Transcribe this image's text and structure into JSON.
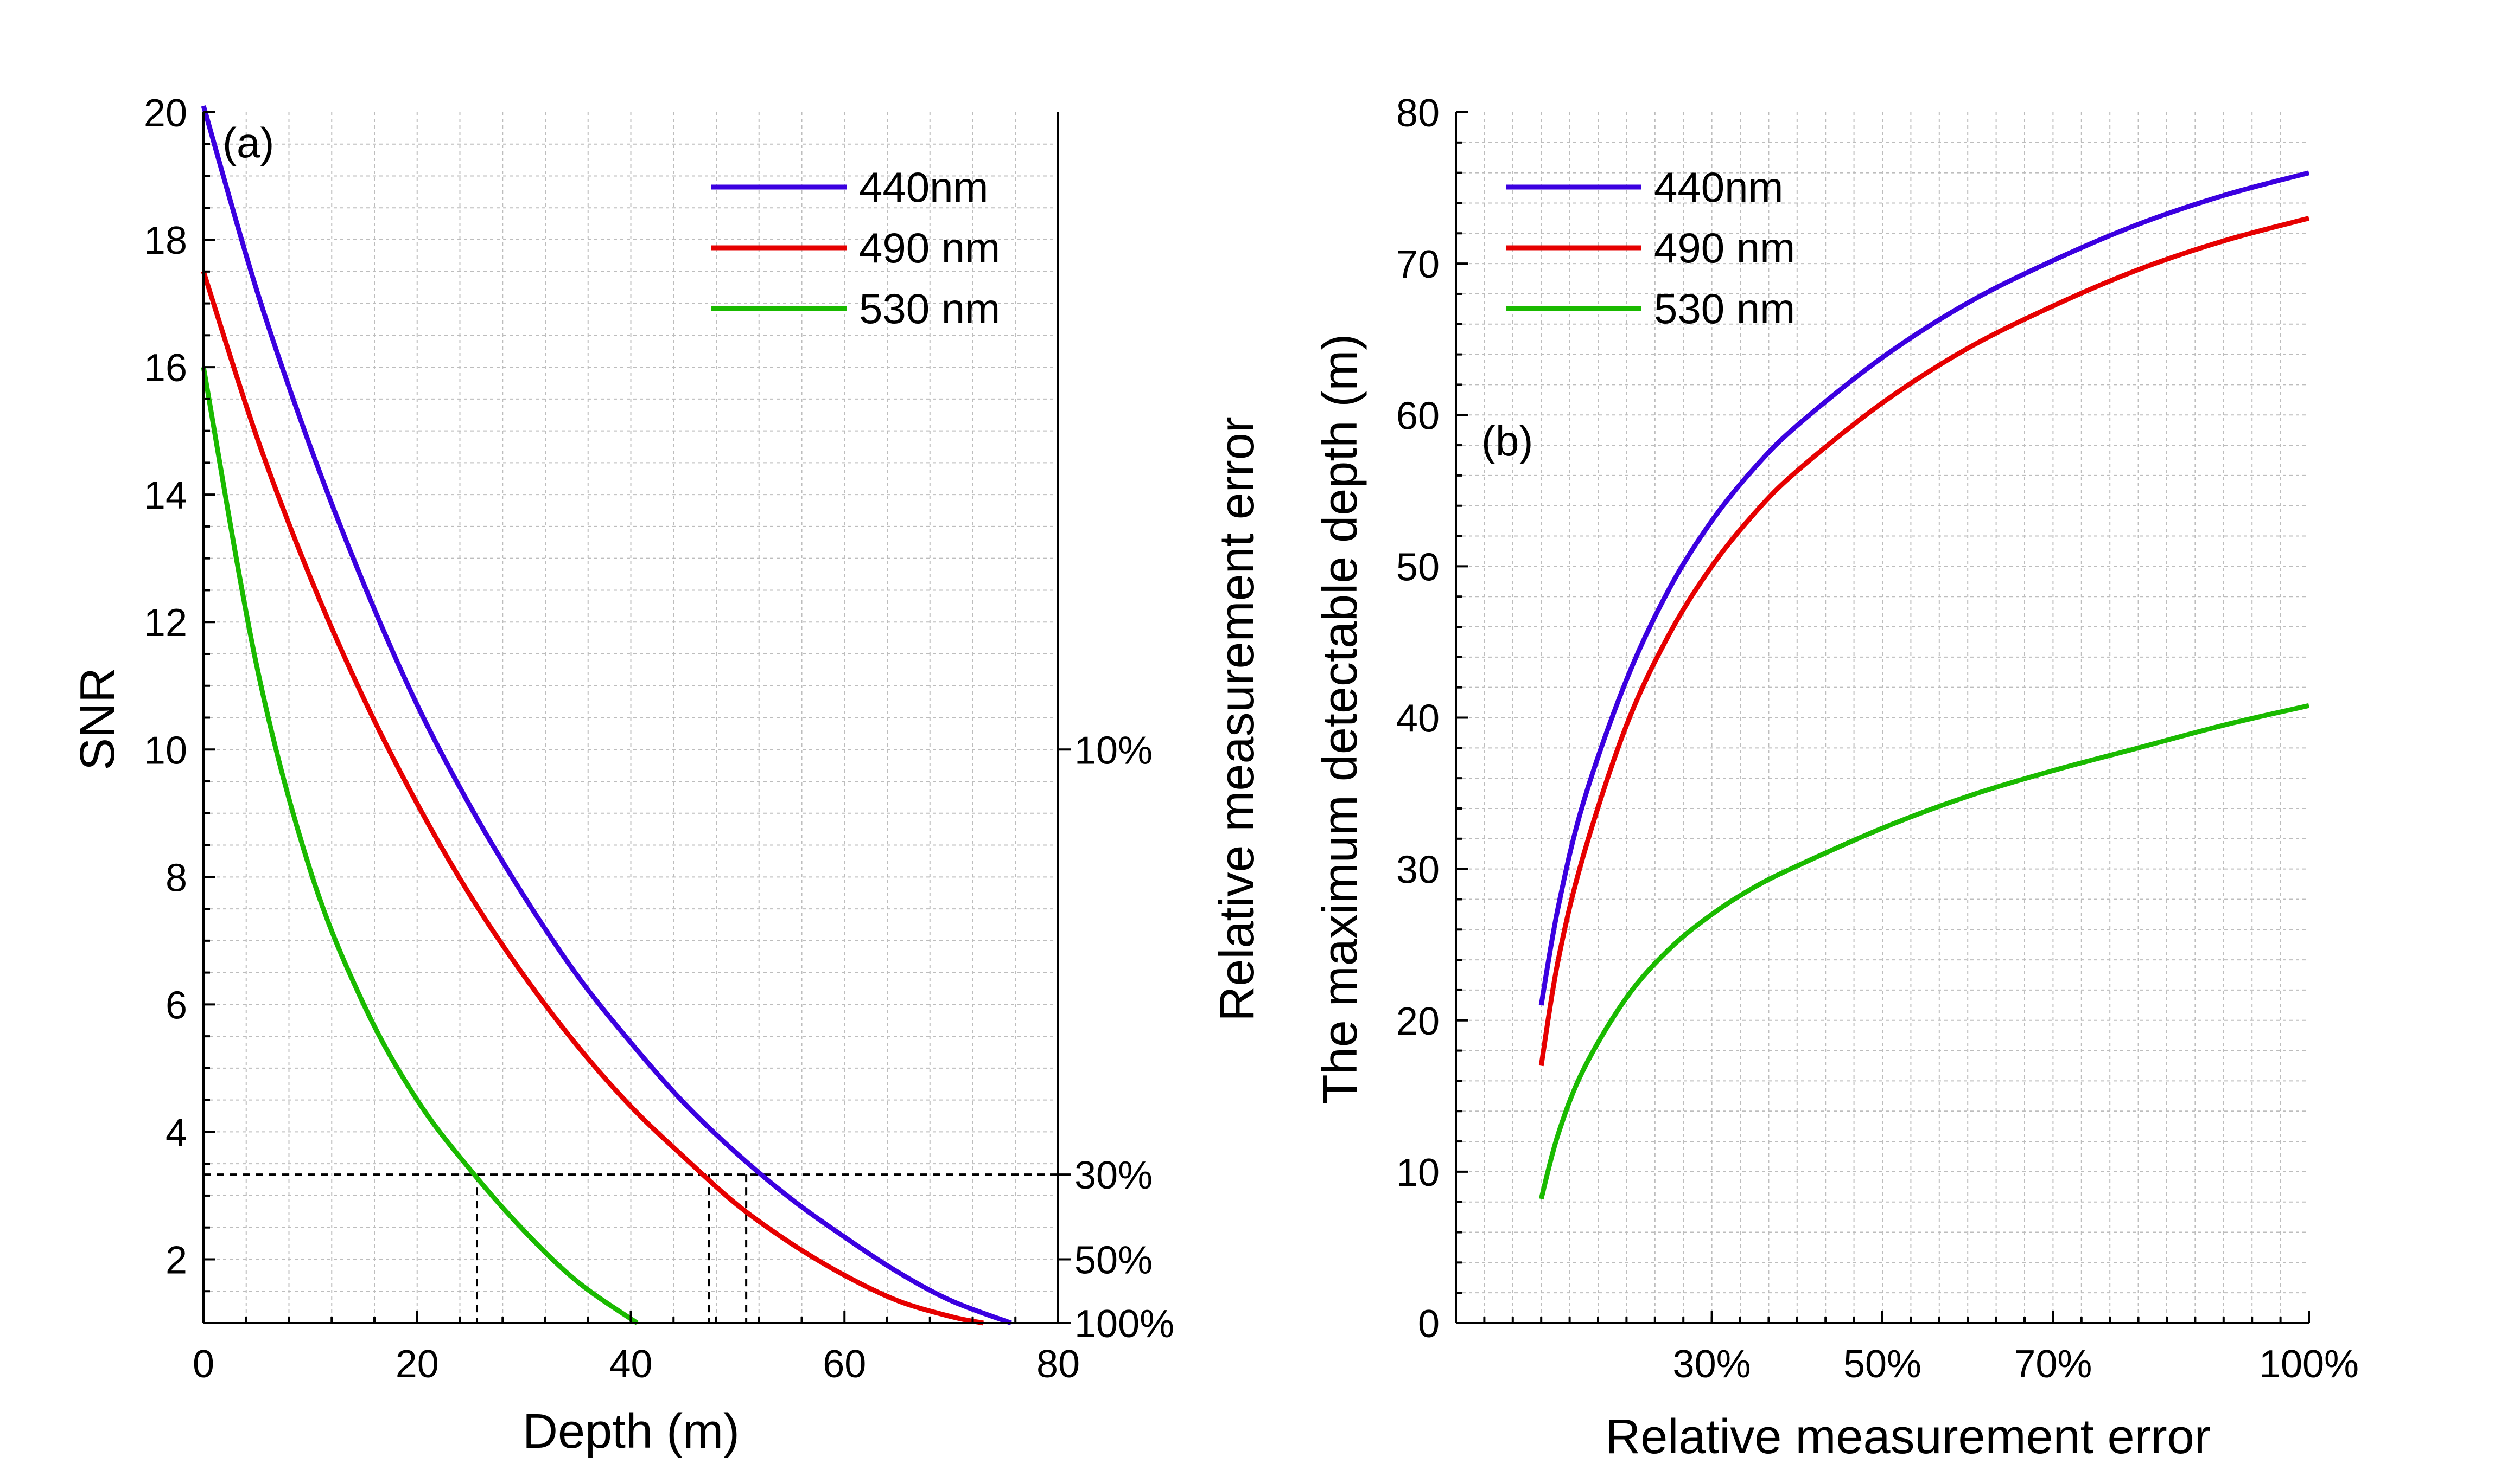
{
  "chart_data": [
    {
      "type": "line",
      "panel_label": "(a)",
      "xlabel": "Depth (m)",
      "ylabel": "SNR",
      "right_ylabel": "Relative measurement error",
      "xlim": [
        0,
        80
      ],
      "ylim": [
        1,
        20
      ],
      "x_ticks": [
        "0",
        "20",
        "40",
        "60",
        "80"
      ],
      "y_ticks": [
        "2",
        "4",
        "6",
        "8",
        "10",
        "12",
        "14",
        "16",
        "18",
        "20"
      ],
      "right_ticks": [
        {
          "label": "10%",
          "snr": 10
        },
        {
          "label": "30%",
          "snr": 3.33
        },
        {
          "label": "50%",
          "snr": 2
        },
        {
          "label": "100%",
          "snr": 1
        }
      ],
      "grid": true,
      "legend_position": "top-right",
      "reference_lines": {
        "snr_level": 3.33,
        "depths": [
          25.6,
          47.3,
          50.8
        ]
      },
      "series": [
        {
          "name": "440nm",
          "color": "#3b00e0",
          "x": [
            0,
            5,
            10,
            15,
            20,
            25,
            30,
            35,
            40,
            45,
            50,
            55,
            60,
            65,
            70,
            75.6
          ],
          "y": [
            20.1,
            17.2,
            14.75,
            12.6,
            10.7,
            9.1,
            7.7,
            6.45,
            5.4,
            4.45,
            3.65,
            2.95,
            2.35,
            1.8,
            1.35,
            1.0
          ]
        },
        {
          "name": "490 nm",
          "color": "#e60000",
          "x": [
            0,
            5,
            10,
            15,
            20,
            25,
            30,
            35,
            40,
            45,
            50,
            55,
            60,
            65,
            70,
            73
          ],
          "y": [
            17.5,
            14.9,
            12.7,
            10.8,
            9.15,
            7.7,
            6.45,
            5.35,
            4.4,
            3.6,
            2.85,
            2.25,
            1.75,
            1.35,
            1.1,
            1.0
          ]
        },
        {
          "name": "530 nm",
          "color": "#1aba00",
          "x": [
            0,
            5,
            10,
            15,
            20,
            25,
            30,
            35,
            40.6
          ],
          "y": [
            16.0,
            11.3,
            8.1,
            6.0,
            4.5,
            3.4,
            2.45,
            1.65,
            1.0
          ]
        }
      ]
    },
    {
      "type": "line",
      "panel_label": "(b)",
      "xlabel": "Relative measurement error",
      "ylabel": "The maximum detectable depth (m)",
      "xlim": [
        0,
        1
      ],
      "ylim": [
        0,
        80
      ],
      "x_ticks": [
        {
          "label": "30%",
          "value": 0.3
        },
        {
          "label": "50%",
          "value": 0.5
        },
        {
          "label": "70%",
          "value": 0.7
        },
        {
          "label": "100%",
          "value": 1.0
        }
      ],
      "y_ticks": [
        "0",
        "10",
        "20",
        "30",
        "40",
        "50",
        "60",
        "70",
        "80"
      ],
      "grid": true,
      "legend_position": "top-left",
      "series": [
        {
          "name": "440nm",
          "color": "#3b00e0",
          "x": [
            0.1,
            0.12,
            0.15,
            0.2,
            0.25,
            0.3,
            0.35,
            0.4,
            0.5,
            0.6,
            0.7,
            0.8,
            0.9,
            1.0
          ],
          "y": [
            21,
            27.5,
            34.5,
            42.5,
            48.5,
            53,
            56.5,
            59.3,
            63.8,
            67.4,
            70.2,
            72.6,
            74.5,
            76
          ]
        },
        {
          "name": "490 nm",
          "color": "#e60000",
          "x": [
            0.1,
            0.12,
            0.15,
            0.2,
            0.25,
            0.3,
            0.35,
            0.4,
            0.5,
            0.6,
            0.7,
            0.8,
            0.9,
            1.0
          ],
          "y": [
            17,
            24,
            31,
            39.5,
            45.5,
            50,
            53.5,
            56.3,
            60.8,
            64.4,
            67.2,
            69.6,
            71.5,
            73
          ]
        },
        {
          "name": "530 nm",
          "color": "#1aba00",
          "x": [
            0.1,
            0.12,
            0.15,
            0.2,
            0.25,
            0.3,
            0.35,
            0.4,
            0.5,
            0.6,
            0.7,
            0.8,
            0.9,
            1.0
          ],
          "y": [
            8.2,
            12.5,
            16.8,
            21.5,
            24.7,
            27,
            28.8,
            30.2,
            32.7,
            34.8,
            36.5,
            38,
            39.5,
            40.8
          ]
        }
      ]
    }
  ]
}
